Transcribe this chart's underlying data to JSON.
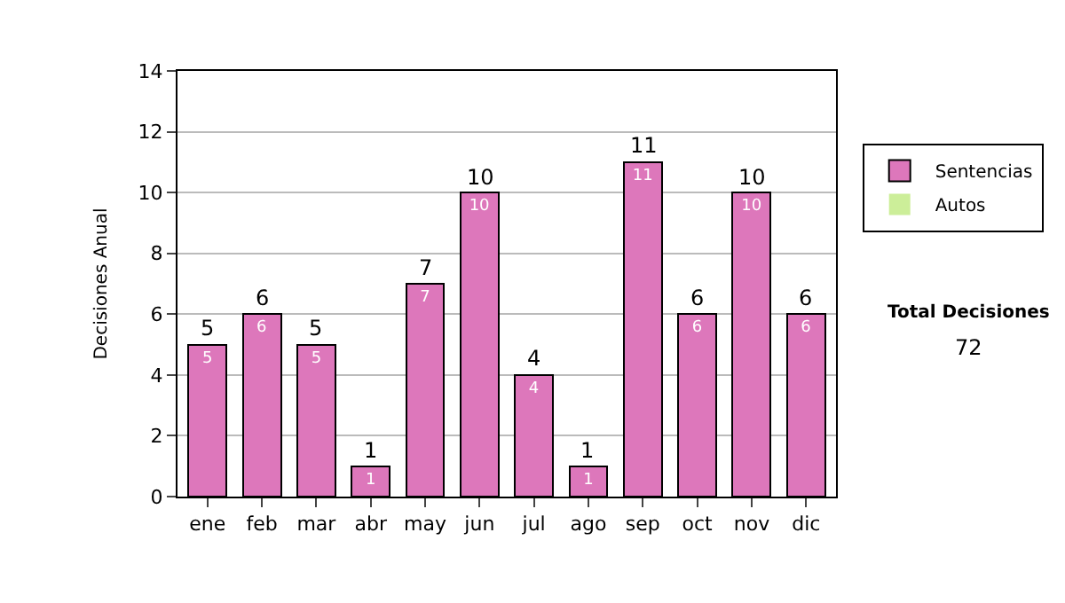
{
  "chart_data": {
    "type": "bar",
    "ylabel": "Decisiones Anual",
    "categories": [
      "ene",
      "feb",
      "mar",
      "abr",
      "may",
      "jun",
      "jul",
      "ago",
      "sep",
      "oct",
      "nov",
      "dic"
    ],
    "series": [
      {
        "name": "Sentencias",
        "color": "#dd77bb",
        "values": [
          5,
          6,
          5,
          1,
          7,
          10,
          4,
          1,
          11,
          6,
          10,
          6
        ],
        "value_labels": [
          "5",
          "6",
          "5",
          "1",
          "7",
          "10",
          "4",
          "1",
          "11",
          "6",
          "10",
          "6"
        ]
      },
      {
        "name": "Autos",
        "color": "#ccee99",
        "values": [
          0,
          0,
          0,
          0,
          0,
          0,
          0,
          0,
          0,
          0,
          0,
          0
        ]
      }
    ],
    "stacked": true,
    "totals": [
      "5",
      "6",
      "5",
      "1",
      "7",
      "10",
      "4",
      "1",
      "11",
      "6",
      "10",
      "6"
    ],
    "ylim": [
      0,
      14
    ],
    "yticks": [
      0,
      2,
      4,
      6,
      8,
      10,
      12,
      14
    ],
    "grid": "y",
    "legend": "right",
    "annotations": [
      "Total Decisiones",
      "72"
    ]
  }
}
